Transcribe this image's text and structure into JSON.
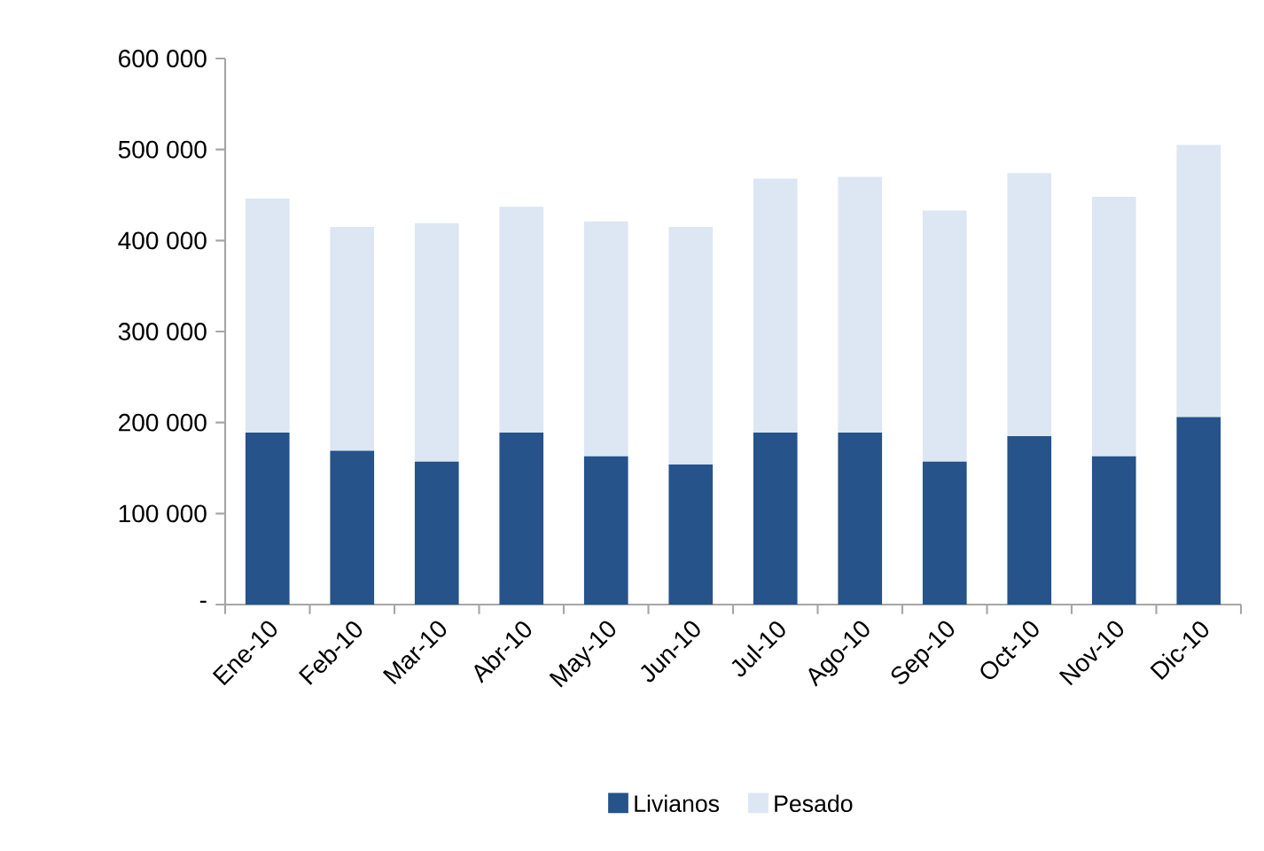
{
  "chart_data": {
    "type": "bar",
    "stacked": true,
    "categories": [
      "Ene-10",
      "Feb-10",
      "Mar-10",
      "Abr-10",
      "May-10",
      "Jun-10",
      "Jul-10",
      "Ago-10",
      "Sep-10",
      "Oct-10",
      "Nov-10",
      "Dic-10"
    ],
    "series": [
      {
        "name": "Livianos",
        "color": "#25538a",
        "values": [
          189000,
          169000,
          157000,
          189000,
          163000,
          154000,
          189000,
          189000,
          157000,
          185000,
          163000,
          206000
        ]
      },
      {
        "name": "Pesado",
        "color": "#dde6f3",
        "values": [
          257000,
          246000,
          262000,
          248000,
          258000,
          261000,
          279000,
          281000,
          276000,
          289000,
          285000,
          299000
        ]
      }
    ],
    "ylim": [
      0,
      600000
    ],
    "yticks": [
      {
        "value": 0,
        "label": "-"
      },
      {
        "value": 100000,
        "label": "100 000"
      },
      {
        "value": 200000,
        "label": "200 000"
      },
      {
        "value": 300000,
        "label": "300 000"
      },
      {
        "value": 400000,
        "label": "400 000"
      },
      {
        "value": 500000,
        "label": "500 000"
      },
      {
        "value": 600000,
        "label": "600 000"
      }
    ],
    "grid": false,
    "legend": "bottom"
  }
}
